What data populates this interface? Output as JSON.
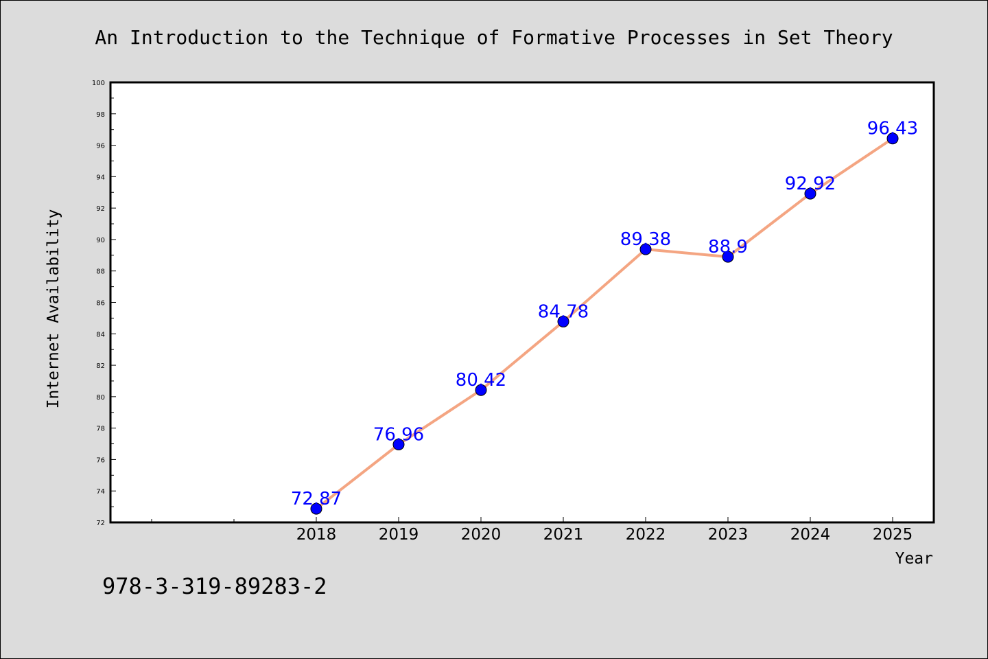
{
  "chart_data": {
    "type": "line",
    "title": "An Introduction to the Technique of Formative Processes in Set Theory",
    "xlabel": "Year",
    "ylabel": "Internet Availability",
    "categories": [
      "2018",
      "2019",
      "2020",
      "2021",
      "2022",
      "2023",
      "2024",
      "2025"
    ],
    "series": [
      {
        "values": [
          72.87,
          76.96,
          80.42,
          84.78,
          89.38,
          88.9,
          92.92,
          96.43
        ],
        "data_labels": [
          "72.87",
          "76.96",
          "80.42",
          "84.78",
          "89.38",
          "88.9",
          "92.92",
          "96.43"
        ]
      }
    ],
    "ylim": [
      72,
      100
    ],
    "yticks": [
      "72",
      "74",
      "76",
      "78",
      "80",
      "82",
      "84",
      "86",
      "88",
      "90",
      "92",
      "94",
      "96",
      "98",
      "100"
    ],
    "grid": false,
    "line_color": "#f4a582",
    "marker_color": "#0000ff",
    "label_color": "#0000ff",
    "background_color": "#dcdcdc",
    "plot_background": "#ffffff"
  },
  "footer": {
    "isbn": "978-3-319-89283-2"
  }
}
